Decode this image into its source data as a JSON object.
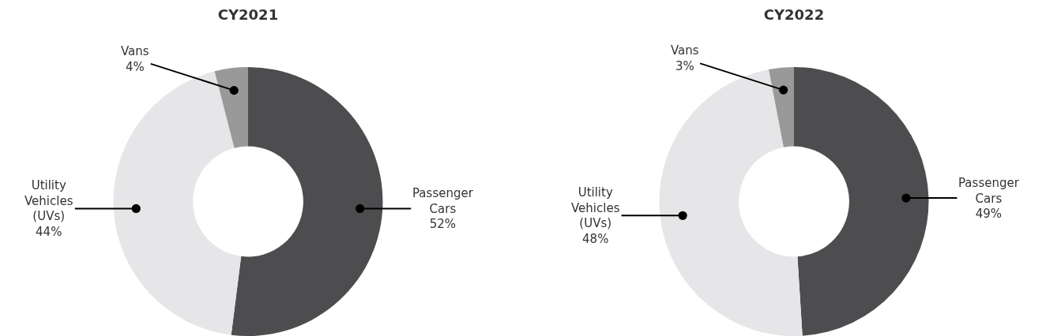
{
  "chart_data": [
    {
      "type": "donut",
      "title": "CY2021",
      "categories": [
        "Passenger Cars",
        "Utility Vehicles (UVs)",
        "Vans"
      ],
      "values": [
        52,
        44,
        4
      ],
      "value_labels": [
        "52%",
        "44%",
        "4%"
      ],
      "colors": [
        "#4d4d4f",
        "#e6e6e8",
        "#999999"
      ],
      "legend": false
    },
    {
      "type": "donut",
      "title": "CY2022",
      "categories": [
        "Passenger Cars",
        "Utility Vehicles (UVs)",
        "Vans"
      ],
      "values": [
        49,
        48,
        3
      ],
      "value_labels": [
        "49%",
        "48%",
        "3%"
      ],
      "colors": [
        "#4d4d4f",
        "#e6e6e8",
        "#999999"
      ],
      "legend": false
    }
  ]
}
